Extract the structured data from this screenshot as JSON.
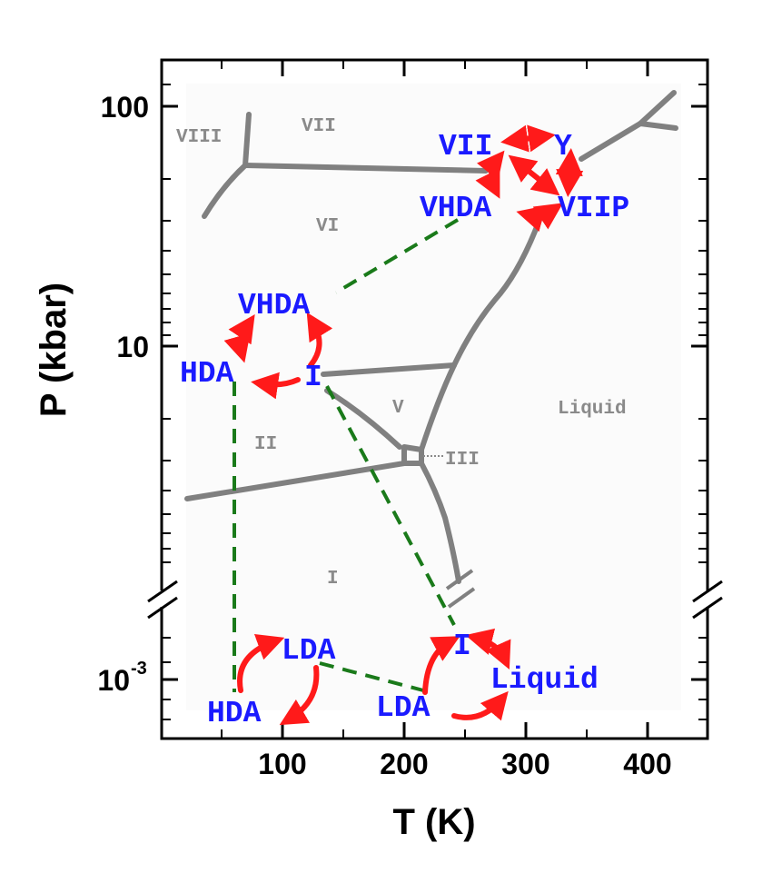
{
  "chart_data": {
    "type": "phase-diagram",
    "xlabel": "T (K)",
    "ylabel": "P (kbar)",
    "xlim": [
      0,
      450
    ],
    "x_ticks": [
      "100",
      "200",
      "300",
      "400"
    ],
    "y_ticks": [
      {
        "label": "100"
      },
      {
        "label": "10"
      },
      {
        "label_base": "10",
        "label_exp": "-3"
      }
    ],
    "y_scale": "log (broken axis)",
    "phase_regions": [
      "VIII",
      "VII",
      "VI",
      "V",
      "II",
      "III",
      "I",
      "Liquid"
    ],
    "overlay_labels": {
      "top_cluster": [
        "VII",
        "Y",
        "VHDA",
        "VIIP"
      ],
      "middle_cluster": [
        "VHDA",
        "HDA",
        "I"
      ],
      "bottom_left_cluster": [
        "LDA",
        "HDA"
      ],
      "bottom_right_cluster": [
        "I",
        "Liquid",
        "LDA"
      ]
    },
    "colors": {
      "phase_boundary": "#808080",
      "phase_text": "#8a8a8a",
      "amorphous_text": "#1a1aff",
      "transition_arrows": "#ff1a1a",
      "connector_dashes": "#1a7a1a"
    }
  }
}
